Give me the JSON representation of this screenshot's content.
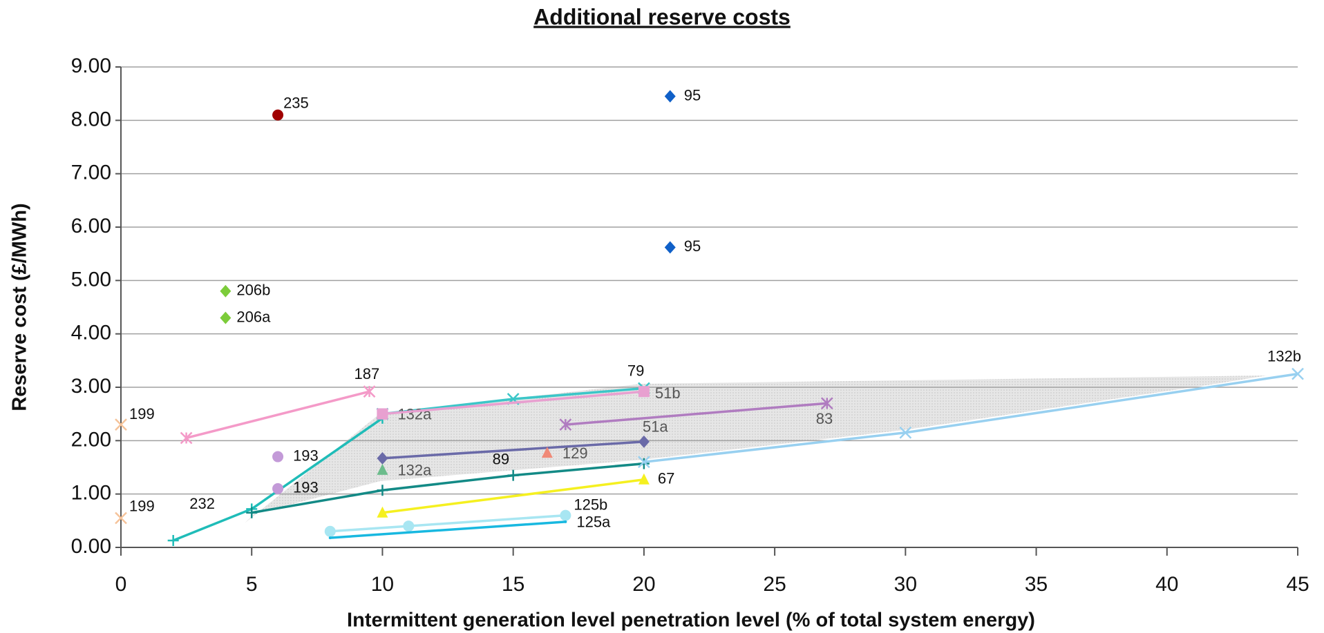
{
  "chart_data": {
    "type": "scatter",
    "title": "Additional reserve costs",
    "xlabel": "Intermittent generation level penetration level (% of total system energy)",
    "ylabel": "Reserve cost (£/MWh)",
    "xlim": [
      0,
      45
    ],
    "ylim": [
      0,
      9
    ],
    "xticks": [
      0,
      5,
      10,
      15,
      20,
      25,
      30,
      35,
      40,
      45
    ],
    "yticks": [
      {
        "value": 0,
        "label": "0.00"
      },
      {
        "value": 1,
        "label": "1.00"
      },
      {
        "value": 2,
        "label": "2.00"
      },
      {
        "value": 3,
        "label": "3.00"
      },
      {
        "value": 4,
        "label": "4.00"
      },
      {
        "value": 5,
        "label": "5.00"
      },
      {
        "value": 6,
        "label": "6.00"
      },
      {
        "value": 7,
        "label": "7.00"
      },
      {
        "value": 8,
        "label": "8.00"
      },
      {
        "value": 9,
        "label": "9.00"
      }
    ],
    "grid": true,
    "series": [
      {
        "name": "235",
        "color": "#a00000",
        "marker": "circle",
        "x": [
          6
        ],
        "values": [
          8.1
        ]
      },
      {
        "name": "95",
        "color": "#1060c8",
        "marker": "diamond",
        "x": [
          21
        ],
        "values": [
          8.45
        ]
      },
      {
        "name": "95",
        "color": "#1060c8",
        "marker": "diamond",
        "x": [
          21
        ],
        "values": [
          5.62
        ]
      },
      {
        "name": "206b",
        "color": "#7ccc3a",
        "marker": "diamond",
        "x": [
          4
        ],
        "values": [
          4.8
        ]
      },
      {
        "name": "206a",
        "color": "#7ccc3a",
        "marker": "diamond",
        "x": [
          4
        ],
        "values": [
          4.3
        ]
      },
      {
        "name": "199",
        "color": "#f5c39a",
        "marker": "x",
        "x": [
          0
        ],
        "values": [
          2.3
        ]
      },
      {
        "name": "199",
        "color": "#f5c39a",
        "marker": "x",
        "x": [
          0
        ],
        "values": [
          0.55
        ]
      },
      {
        "name": "187",
        "color": "#f49ac8",
        "marker": "star",
        "x": [
          2.5,
          9.5
        ],
        "values": [
          2.05,
          2.92
        ]
      },
      {
        "name": "232",
        "color": "#1fbcb8",
        "marker": "plus",
        "x": [
          2,
          5,
          10
        ],
        "values": [
          0.13,
          0.72,
          2.42
        ]
      },
      {
        "name": "89",
        "color": "#138a86",
        "marker": "plus",
        "x": [
          5,
          10,
          15,
          20
        ],
        "values": [
          0.65,
          1.07,
          1.35,
          1.57
        ]
      },
      {
        "name": "79",
        "color": "#3cc6c8",
        "marker": "x",
        "x": [
          10,
          15,
          20
        ],
        "values": [
          2.5,
          2.78,
          2.98
        ]
      },
      {
        "name": "132a",
        "color": "#d466c0",
        "marker": "square",
        "x": [
          10
        ],
        "values": [
          2.5
        ]
      },
      {
        "name": "51b",
        "color": "#e8a0d0",
        "marker": "square",
        "x": [
          10,
          20
        ],
        "values": [
          2.5,
          2.92
        ]
      },
      {
        "name": "83",
        "color": "#b07cc0",
        "marker": "star",
        "x": [
          17,
          27
        ],
        "values": [
          2.3,
          2.7
        ]
      },
      {
        "name": "51a",
        "color": "#6a6aa8",
        "marker": "diamond",
        "x": [
          10,
          20
        ],
        "values": [
          1.67,
          1.98
        ]
      },
      {
        "name": "129",
        "color": "#f08a78",
        "marker": "triangle",
        "x": [
          16.3
        ],
        "values": [
          1.77
        ]
      },
      {
        "name": "132a",
        "color": "#6cbc8c",
        "marker": "triangle",
        "x": [
          10
        ],
        "values": [
          1.45
        ]
      },
      {
        "name": "193",
        "color": "#c39ad8",
        "marker": "circle",
        "x": [
          6
        ],
        "values": [
          1.7
        ]
      },
      {
        "name": "193",
        "color": "#c39ad8",
        "marker": "circle",
        "x": [
          6
        ],
        "values": [
          1.1
        ]
      },
      {
        "name": "67",
        "color": "#f5f020",
        "marker": "triangle",
        "x": [
          10,
          20
        ],
        "values": [
          0.65,
          1.27
        ]
      },
      {
        "name": "125b",
        "color": "#a8e6f2",
        "marker": "circle",
        "x": [
          8,
          11,
          17
        ],
        "values": [
          0.3,
          0.4,
          0.6
        ]
      },
      {
        "name": "125a",
        "color": "#18b8e0",
        "marker": "none",
        "x": [
          8,
          17
        ],
        "values": [
          0.18,
          0.48
        ]
      },
      {
        "name": "132b",
        "color": "#98d0f0",
        "marker": "x",
        "x": [
          20,
          30,
          45
        ],
        "values": [
          1.6,
          2.15,
          3.25
        ]
      }
    ]
  }
}
